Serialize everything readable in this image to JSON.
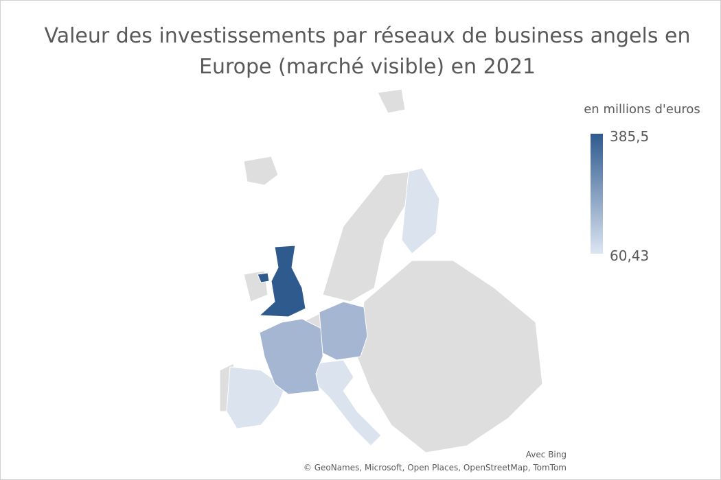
{
  "title": "Valeur des investissements par réseaux de business angels en Europe (marché visible) en 2021",
  "legend": {
    "title": "en millions d'euros",
    "max": {
      "value": 385.5,
      "label": "385,5"
    },
    "min": {
      "value": 60.43,
      "label": "60,43"
    },
    "colors": [
      "#dce5f2",
      "#2f5a8e"
    ]
  },
  "credits": {
    "provider": "Avec Bing",
    "sources": "© GeoNames, Microsoft, Open Places, OpenStreetMap, TomTom"
  }
}
